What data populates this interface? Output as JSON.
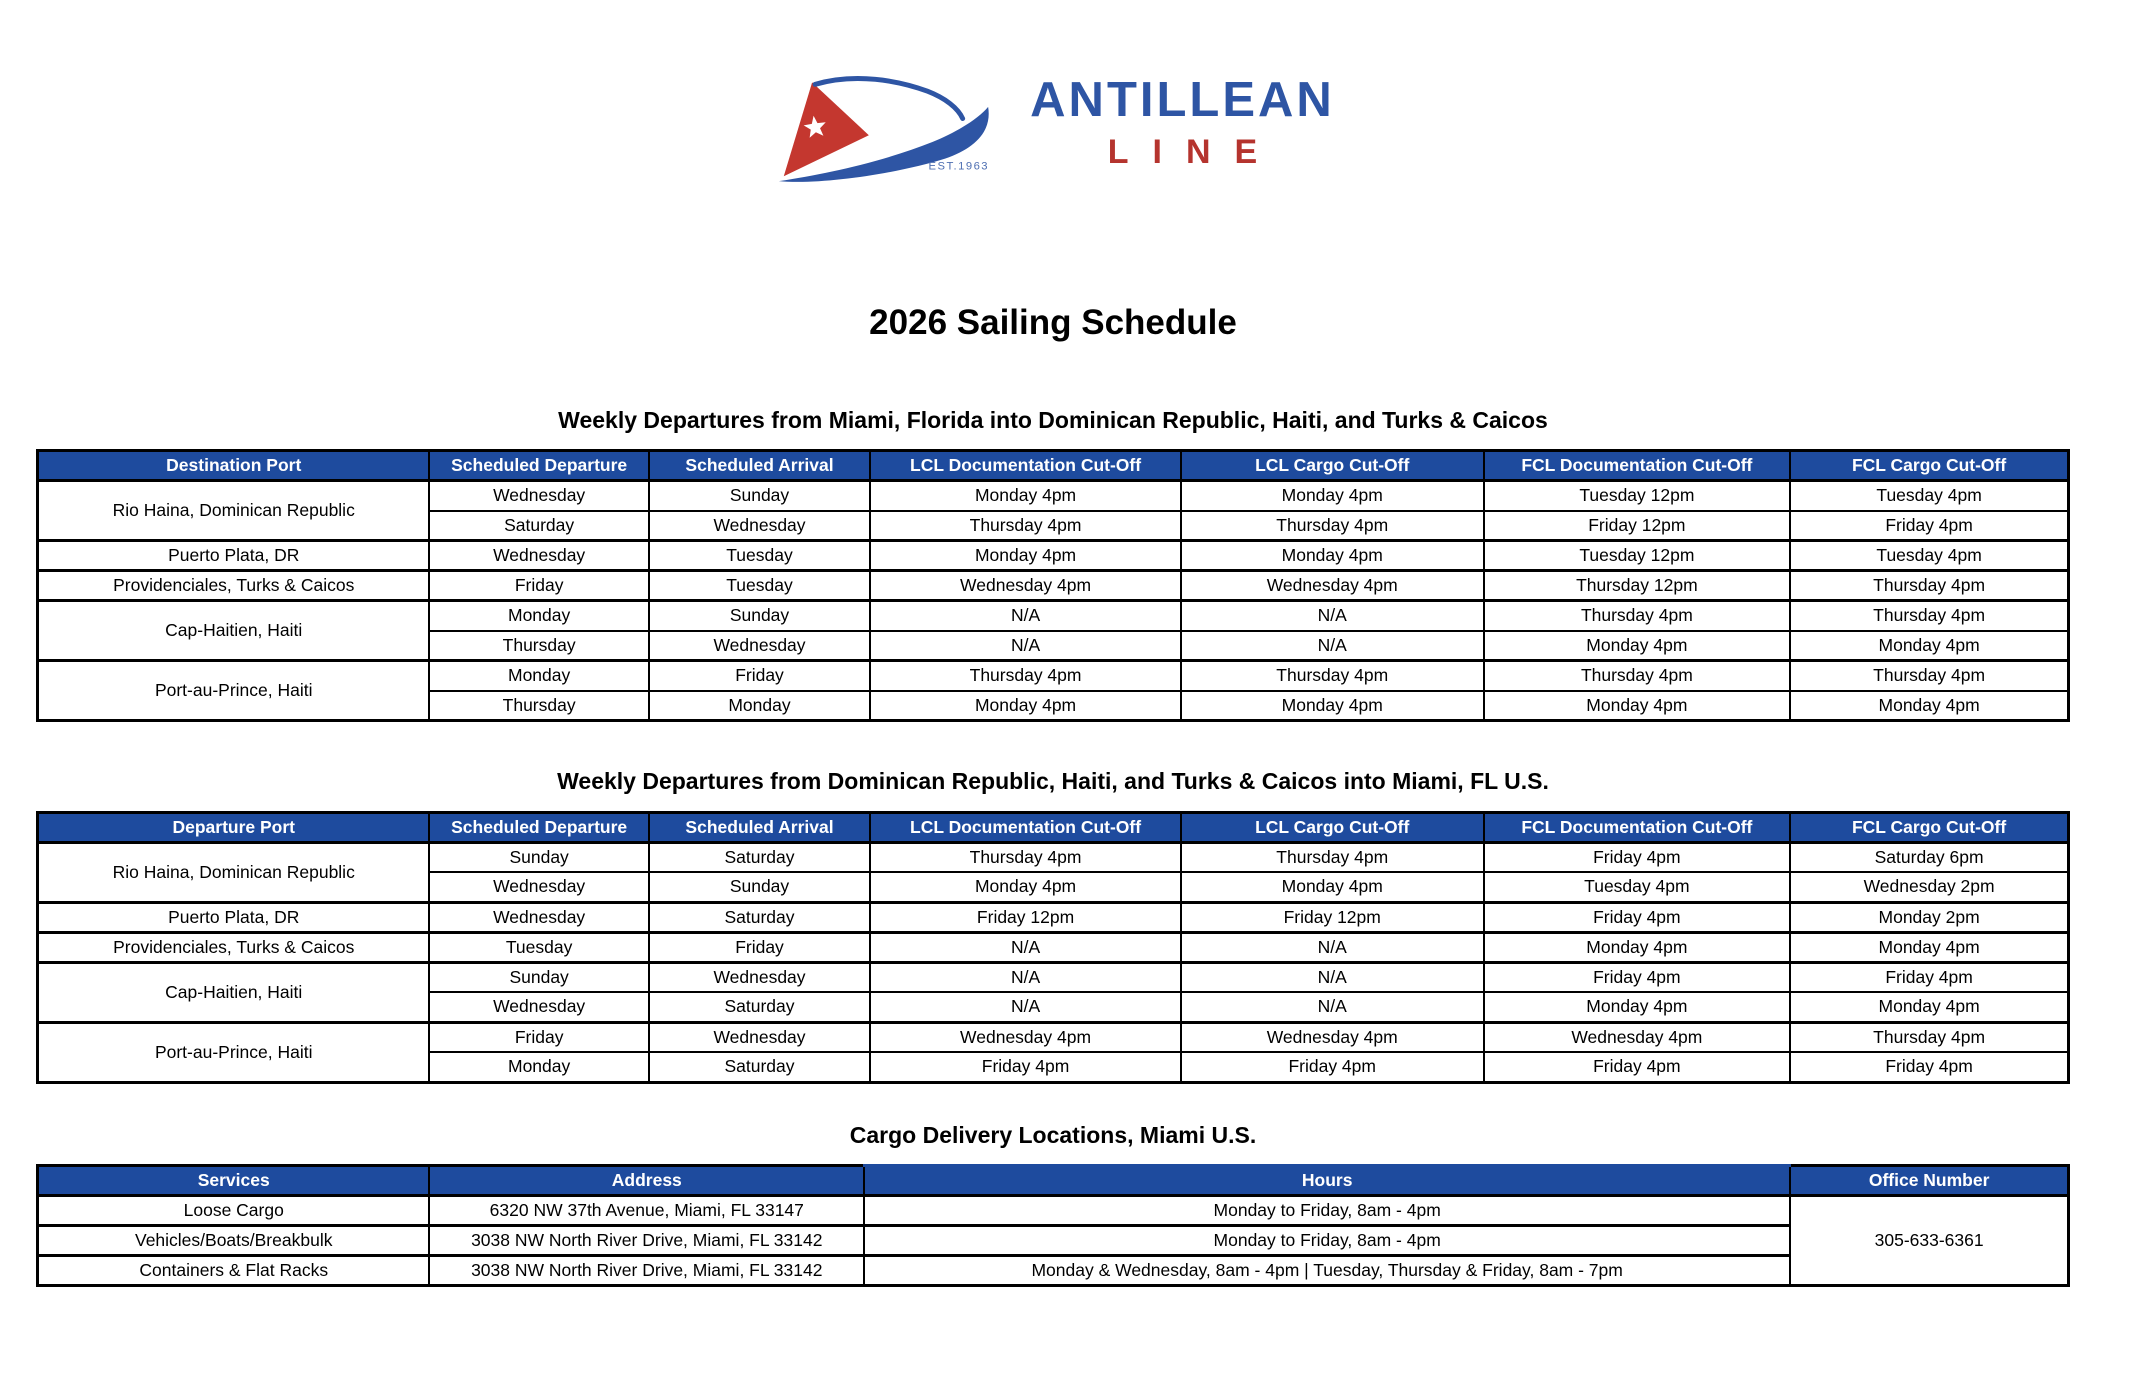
{
  "brand": {
    "name": "ANTILLEAN",
    "subname": "LINE",
    "established": "EST.1963",
    "flag_icon": "cuban-style-flag-pennant"
  },
  "title": "2026 Sailing Schedule",
  "schedule_tables": [
    {
      "caption": "Weekly Departures from Miami, Florida into Dominican Republic, Haiti, and Turks & Caicos",
      "headers": [
        "Destination Port",
        "Scheduled Departure",
        "Scheduled Arrival",
        "LCL Documentation Cut-Off",
        "LCL Cargo Cut-Off",
        "FCL Documentation Cut-Off",
        "FCL Cargo Cut-Off"
      ],
      "groups": [
        {
          "port": "Rio Haina, Dominican Republic",
          "rows": [
            [
              "Wednesday",
              "Sunday",
              "Monday 4pm",
              "Monday 4pm",
              "Tuesday 12pm",
              "Tuesday 4pm"
            ],
            [
              "Saturday",
              "Wednesday",
              "Thursday 4pm",
              "Thursday 4pm",
              "Friday 12pm",
              "Friday 4pm"
            ]
          ]
        },
        {
          "port": "Puerto Plata, DR",
          "rows": [
            [
              "Wednesday",
              "Tuesday",
              "Monday 4pm",
              "Monday 4pm",
              "Tuesday 12pm",
              "Tuesday 4pm"
            ]
          ]
        },
        {
          "port": "Providenciales, Turks & Caicos",
          "rows": [
            [
              "Friday",
              "Tuesday",
              "Wednesday 4pm",
              "Wednesday 4pm",
              "Thursday 12pm",
              "Thursday 4pm"
            ]
          ]
        },
        {
          "port": "Cap-Haitien, Haiti",
          "rows": [
            [
              "Monday",
              "Sunday",
              "N/A",
              "N/A",
              "Thursday 4pm",
              "Thursday 4pm"
            ],
            [
              "Thursday",
              "Wednesday",
              "N/A",
              "N/A",
              "Monday 4pm",
              "Monday 4pm"
            ]
          ]
        },
        {
          "port": "Port-au-Prince, Haiti",
          "rows": [
            [
              "Monday",
              "Friday",
              "Thursday 4pm",
              "Thursday 4pm",
              "Thursday 4pm",
              "Thursday 4pm"
            ],
            [
              "Thursday",
              "Monday",
              "Monday 4pm",
              "Monday 4pm",
              "Monday 4pm",
              "Monday 4pm"
            ]
          ]
        }
      ]
    },
    {
      "caption": "Weekly Departures from Dominican Republic, Haiti, and Turks & Caicos into Miami, FL U.S.",
      "headers": [
        "Departure Port",
        "Scheduled Departure",
        "Scheduled Arrival",
        "LCL Documentation Cut-Off",
        "LCL Cargo Cut-Off",
        "FCL Documentation Cut-Off",
        "FCL Cargo Cut-Off"
      ],
      "groups": [
        {
          "port": "Rio Haina, Dominican Republic",
          "rows": [
            [
              "Sunday",
              "Saturday",
              "Thursday 4pm",
              "Thursday 4pm",
              "Friday 4pm",
              "Saturday 6pm"
            ],
            [
              "Wednesday",
              "Sunday",
              "Monday 4pm",
              "Monday 4pm",
              "Tuesday 4pm",
              "Wednesday 2pm"
            ]
          ]
        },
        {
          "port": "Puerto Plata, DR",
          "rows": [
            [
              "Wednesday",
              "Saturday",
              "Friday 12pm",
              "Friday 12pm",
              "Friday 4pm",
              "Monday 2pm"
            ]
          ]
        },
        {
          "port": "Providenciales, Turks & Caicos",
          "rows": [
            [
              "Tuesday",
              "Friday",
              "N/A",
              "N/A",
              "Monday 4pm",
              "Monday 4pm"
            ]
          ]
        },
        {
          "port": "Cap-Haitien, Haiti",
          "rows": [
            [
              "Sunday",
              "Wednesday",
              "N/A",
              "N/A",
              "Friday 4pm",
              "Friday 4pm"
            ],
            [
              "Wednesday",
              "Saturday",
              "N/A",
              "N/A",
              "Monday 4pm",
              "Monday 4pm"
            ]
          ]
        },
        {
          "port": "Port-au-Prince, Haiti",
          "rows": [
            [
              "Friday",
              "Wednesday",
              "Wednesday 4pm",
              "Wednesday 4pm",
              "Wednesday 4pm",
              "Thursday 4pm"
            ],
            [
              "Monday",
              "Saturday",
              "Friday 4pm",
              "Friday 4pm",
              "Friday 4pm",
              "Friday 4pm"
            ]
          ]
        }
      ]
    }
  ],
  "cargo_table": {
    "caption": "Cargo Delivery Locations, Miami U.S.",
    "headers": [
      "Services",
      "Address",
      "Hours",
      "Office Number"
    ],
    "rows": [
      {
        "service": "Loose Cargo",
        "address": "6320 NW 37th Avenue, Miami, FL 33147",
        "hours": "Monday to Friday, 8am - 4pm"
      },
      {
        "service": "Vehicles/Boats/Breakbulk",
        "address": "3038 NW North River Drive, Miami, FL 33142",
        "hours": "Monday to Friday, 8am - 4pm"
      },
      {
        "service": "Containers & Flat Racks",
        "address": "3038 NW North River Drive, Miami, FL 33142",
        "hours": "Monday & Wednesday, 8am - 4pm | Tuesday, Thursday & Friday, 8am - 7pm"
      }
    ],
    "office_number": "305-633-6361"
  },
  "colors": {
    "header_blue": "#1E4B9E",
    "brand_blue": "#2E55A4",
    "brand_red": "#B5342E",
    "flag_red": "#C4372F"
  }
}
